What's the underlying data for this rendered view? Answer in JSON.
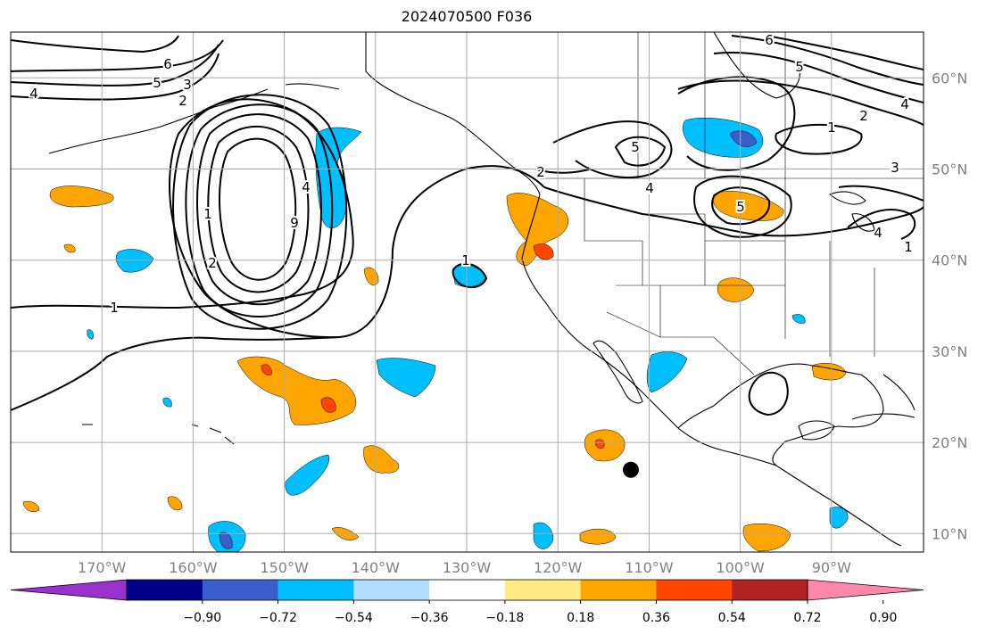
{
  "title": "2024070500 F036",
  "map": {
    "lon_range": [
      -180,
      -80
    ],
    "lat_range": [
      8,
      65
    ],
    "lon_ticks": [
      {
        "value": -170,
        "label": "170°W"
      },
      {
        "value": -160,
        "label": "160°W"
      },
      {
        "value": -150,
        "label": "150°W"
      },
      {
        "value": -140,
        "label": "140°W"
      },
      {
        "value": -130,
        "label": "130°W"
      },
      {
        "value": -120,
        "label": "120°W"
      },
      {
        "value": -110,
        "label": "110°W"
      },
      {
        "value": -100,
        "label": "100°W"
      },
      {
        "value": -90,
        "label": "90°W"
      }
    ],
    "lat_ticks": [
      {
        "value": 60,
        "label": "60°N"
      },
      {
        "value": 50,
        "label": "50°N"
      },
      {
        "value": 40,
        "label": "40°N"
      },
      {
        "value": 30,
        "label": "30°N"
      },
      {
        "value": 20,
        "label": "20°N"
      },
      {
        "value": 10,
        "label": "10°N"
      }
    ],
    "grid": true,
    "marker": {
      "lon": -112,
      "lat": 17
    }
  },
  "colorbar": {
    "colors": [
      "#9932CC",
      "#00008B",
      "#3A5FCD",
      "#00BFFF",
      "#B2DFFF",
      "#FFFFFF",
      "#FFEA85",
      "#FFA500",
      "#FF4500",
      "#B22222",
      "#FF88AA"
    ],
    "tick_labels": [
      "−0.90",
      "−0.72",
      "−0.54",
      "−0.36",
      "−0.18",
      "0.18",
      "0.36",
      "0.54",
      "0.72",
      "0.90"
    ]
  },
  "contour_labels": [
    "6",
    "5",
    "4",
    "3",
    "2",
    "1",
    "4",
    "2",
    "9",
    "1",
    "1",
    "2",
    "5",
    "4",
    "5",
    "6",
    "5",
    "1",
    "2",
    "3",
    "4",
    "4",
    "1"
  ],
  "legend_colors": {
    "coast": "#000000",
    "grid": "#aaaaaa",
    "tick_text": "#808080"
  }
}
